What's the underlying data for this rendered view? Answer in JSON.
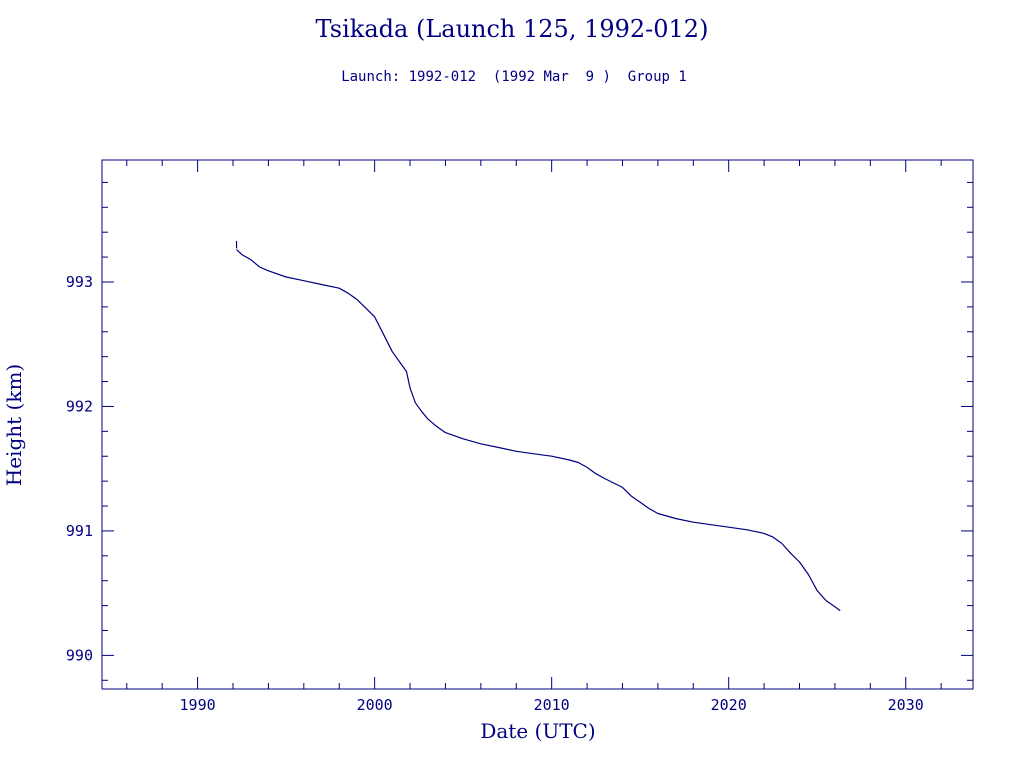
{
  "colors": {
    "ink": "#000080",
    "background": "#ffffff"
  },
  "chart_data": {
    "type": "line",
    "title": "Tsikada (Launch 125, 1992-012)",
    "subtitle": "Launch: 1992-012  (1992 Mar  9 )  Group 1",
    "xlabel": "Date (UTC)",
    "ylabel": "Height (km)",
    "xlim": [
      1984.6,
      2033.8
    ],
    "ylim": [
      989.73,
      993.98
    ],
    "x_ticks": [
      1990,
      2000,
      2010,
      2020,
      2030
    ],
    "y_ticks": [
      990,
      991,
      992,
      993
    ],
    "x_tick_labels": [
      "1990",
      "2000",
      "2010",
      "2020",
      "2030"
    ],
    "y_tick_labels": [
      "990",
      "991",
      "992",
      "993"
    ],
    "grid": false,
    "legend": "none",
    "launch_spike": {
      "x": 1992.2,
      "y_from": 993.27,
      "y_to": 993.33
    },
    "series": [
      {
        "x": [
          1992.2,
          1992.5,
          1993.0,
          1993.5,
          1994.0,
          1995.0,
          1996.0,
          1997.0,
          1998.0,
          1998.5,
          1999.0,
          1999.5,
          2000.0,
          2000.5,
          2001.0,
          2001.5,
          2001.8,
          2002.0,
          2002.3,
          2002.6,
          2003.0,
          2003.5,
          2004.0,
          2005.0,
          2006.0,
          2007.0,
          2008.0,
          2009.0,
          2010.0,
          2011.0,
          2011.5,
          2012.0,
          2012.5,
          2013.0,
          2014.0,
          2014.5,
          2015.0,
          2015.5,
          2016.0,
          2017.0,
          2018.0,
          2019.0,
          2020.0,
          2021.0,
          2022.0,
          2022.5,
          2023.0,
          2023.5,
          2024.0,
          2024.5,
          2025.0,
          2025.5,
          2026.0,
          2026.3
        ],
        "y": [
          993.26,
          993.22,
          993.18,
          993.12,
          993.09,
          993.04,
          993.01,
          992.98,
          992.95,
          992.91,
          992.86,
          992.79,
          992.72,
          992.58,
          992.44,
          992.34,
          992.28,
          992.15,
          992.03,
          991.97,
          991.9,
          991.84,
          991.79,
          991.74,
          991.7,
          991.67,
          991.64,
          991.62,
          991.6,
          991.57,
          991.55,
          991.51,
          991.46,
          991.42,
          991.35,
          991.28,
          991.23,
          991.18,
          991.14,
          991.1,
          991.07,
          991.05,
          991.03,
          991.01,
          990.98,
          990.95,
          990.9,
          990.82,
          990.75,
          990.65,
          990.52,
          990.44,
          990.39,
          990.36
        ]
      }
    ]
  }
}
